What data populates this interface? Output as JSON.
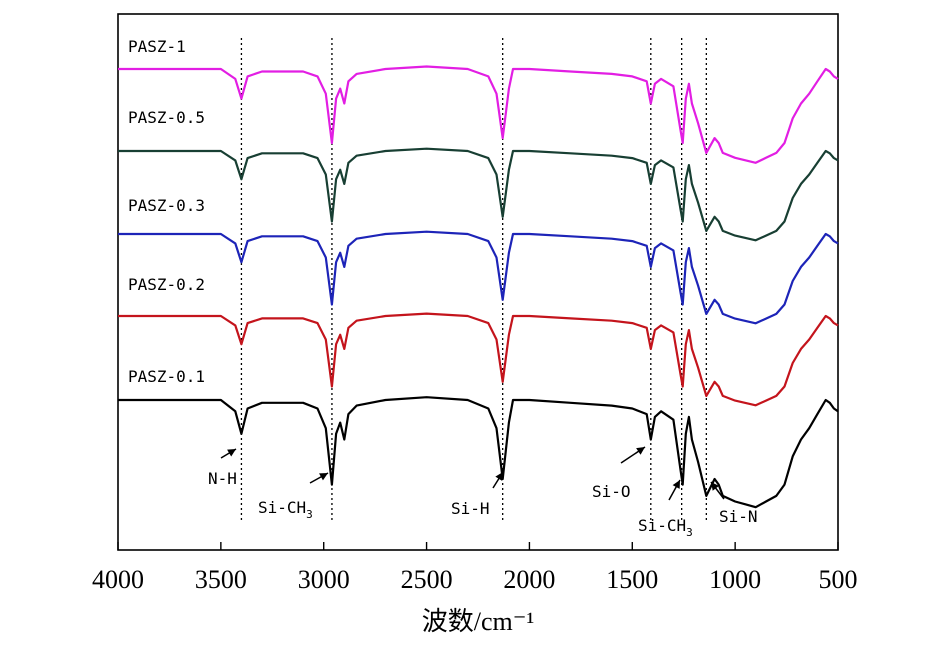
{
  "chart_data": {
    "type": "line",
    "title": "",
    "xlabel": "波数/cm⁻¹",
    "ylabel": "",
    "x_reversed": true,
    "xlim": [
      4000,
      500
    ],
    "xticks": [
      4000,
      3500,
      3000,
      2500,
      2000,
      1500,
      1000,
      500
    ],
    "y_axis_ticks": false,
    "grid": false,
    "legend": "none",
    "reference_lines": [
      3400,
      2960,
      2130,
      1410,
      1260,
      1140
    ],
    "series": [
      {
        "name": "PASZ-1",
        "color": "#e21ee3",
        "x": [
          4000,
          3500,
          3430,
          3400,
          3370,
          3300,
          3100,
          3030,
          2990,
          2960,
          2940,
          2920,
          2900,
          2880,
          2840,
          2700,
          2500,
          2300,
          2200,
          2160,
          2130,
          2100,
          2080,
          2000,
          1800,
          1600,
          1500,
          1430,
          1410,
          1390,
          1360,
          1300,
          1265,
          1255,
          1240,
          1225,
          1210,
          1180,
          1140,
          1100,
          1080,
          1060,
          1000,
          950,
          900,
          850,
          800,
          760,
          720,
          680,
          640,
          600,
          560,
          540,
          520,
          500
        ],
        "y": [
          100,
          100,
          96,
          88,
          97,
          99,
          99,
          97,
          90,
          70,
          88,
          92,
          86,
          95,
          98,
          100,
          101,
          100,
          97,
          90,
          72,
          92,
          100,
          100,
          99,
          98,
          97,
          95,
          86,
          94,
          96,
          93,
          75,
          70,
          88,
          94,
          86,
          78,
          66,
          72,
          70,
          66,
          64,
          63,
          62,
          64,
          66,
          70,
          80,
          86,
          90,
          95,
          100,
          99,
          97,
          96
        ]
      },
      {
        "name": "PASZ-0.5",
        "color": "#183f33",
        "x": [
          4000,
          3500,
          3430,
          3400,
          3370,
          3300,
          3100,
          3030,
          2990,
          2960,
          2940,
          2920,
          2900,
          2880,
          2840,
          2700,
          2500,
          2300,
          2200,
          2160,
          2130,
          2100,
          2080,
          2000,
          1800,
          1600,
          1500,
          1430,
          1410,
          1390,
          1360,
          1300,
          1265,
          1255,
          1240,
          1225,
          1210,
          1180,
          1140,
          1100,
          1080,
          1060,
          1000,
          950,
          900,
          850,
          800,
          760,
          720,
          680,
          640,
          600,
          560,
          540,
          520,
          500
        ],
        "y": [
          100,
          100,
          96,
          88,
          97,
          99,
          99,
          97,
          90,
          70,
          88,
          92,
          86,
          95,
          98,
          100,
          101,
          100,
          97,
          90,
          72,
          92,
          100,
          100,
          99,
          98,
          97,
          95,
          86,
          94,
          96,
          93,
          75,
          70,
          88,
          94,
          86,
          78,
          66,
          72,
          70,
          66,
          64,
          63,
          62,
          64,
          66,
          70,
          80,
          86,
          90,
          95,
          100,
          99,
          97,
          96
        ]
      },
      {
        "name": "PASZ-0.3",
        "color": "#1d24b8",
        "x": [
          4000,
          3500,
          3430,
          3400,
          3370,
          3300,
          3100,
          3030,
          2990,
          2960,
          2940,
          2920,
          2900,
          2880,
          2840,
          2700,
          2500,
          2300,
          2200,
          2160,
          2130,
          2100,
          2080,
          2000,
          1800,
          1600,
          1500,
          1430,
          1410,
          1390,
          1360,
          1300,
          1265,
          1255,
          1240,
          1225,
          1210,
          1180,
          1140,
          1100,
          1080,
          1060,
          1000,
          950,
          900,
          850,
          800,
          760,
          720,
          680,
          640,
          600,
          560,
          540,
          520,
          500
        ],
        "y": [
          100,
          100,
          96,
          88,
          97,
          99,
          99,
          97,
          90,
          70,
          88,
          92,
          86,
          95,
          98,
          100,
          101,
          100,
          97,
          90,
          72,
          92,
          100,
          100,
          99,
          98,
          97,
          95,
          86,
          94,
          96,
          93,
          75,
          70,
          88,
          94,
          86,
          78,
          66,
          72,
          70,
          66,
          64,
          63,
          62,
          64,
          66,
          70,
          80,
          86,
          90,
          95,
          100,
          99,
          97,
          96
        ]
      },
      {
        "name": "PASZ-0.2",
        "color": "#c4141c",
        "x": [
          4000,
          3500,
          3430,
          3400,
          3370,
          3300,
          3100,
          3030,
          2990,
          2960,
          2940,
          2920,
          2900,
          2880,
          2840,
          2700,
          2500,
          2300,
          2200,
          2160,
          2130,
          2100,
          2080,
          2000,
          1800,
          1600,
          1500,
          1430,
          1410,
          1390,
          1360,
          1300,
          1265,
          1255,
          1240,
          1225,
          1210,
          1180,
          1140,
          1100,
          1080,
          1060,
          1000,
          950,
          900,
          850,
          800,
          760,
          720,
          680,
          640,
          600,
          560,
          540,
          520,
          500
        ],
        "y": [
          100,
          100,
          96,
          88,
          97,
          99,
          99,
          97,
          90,
          70,
          88,
          92,
          86,
          95,
          98,
          100,
          101,
          100,
          97,
          90,
          72,
          92,
          100,
          100,
          99,
          98,
          97,
          95,
          86,
          94,
          96,
          93,
          75,
          70,
          88,
          94,
          86,
          78,
          66,
          72,
          70,
          66,
          64,
          63,
          62,
          64,
          66,
          70,
          80,
          86,
          90,
          95,
          100,
          99,
          97,
          96
        ]
      },
      {
        "name": "PASZ-0.1",
        "color": "#000000",
        "x": [
          4000,
          3500,
          3430,
          3400,
          3370,
          3300,
          3100,
          3030,
          2990,
          2960,
          2940,
          2920,
          2900,
          2880,
          2840,
          2700,
          2500,
          2300,
          2200,
          2160,
          2130,
          2100,
          2080,
          2000,
          1800,
          1600,
          1500,
          1430,
          1410,
          1390,
          1360,
          1300,
          1265,
          1255,
          1240,
          1225,
          1210,
          1180,
          1140,
          1100,
          1080,
          1060,
          1000,
          950,
          900,
          850,
          800,
          760,
          720,
          680,
          640,
          600,
          560,
          540,
          520,
          500
        ],
        "y": [
          100,
          100,
          96,
          88,
          97,
          99,
          99,
          97,
          90,
          70,
          88,
          92,
          86,
          95,
          98,
          100,
          101,
          100,
          97,
          90,
          72,
          92,
          100,
          100,
          99,
          98,
          97,
          95,
          86,
          94,
          96,
          93,
          75,
          70,
          88,
          94,
          86,
          78,
          66,
          72,
          70,
          66,
          64,
          63,
          62,
          64,
          66,
          70,
          80,
          86,
          90,
          95,
          100,
          99,
          97,
          96
        ]
      }
    ],
    "annotations": [
      {
        "text": "N-H",
        "sub": "",
        "x": 3400
      },
      {
        "text": "Si-CH",
        "sub": "3",
        "x": 2960
      },
      {
        "text": "Si-H",
        "sub": "",
        "x": 2130
      },
      {
        "text": "Si-O",
        "sub": "",
        "x": 1410
      },
      {
        "text": "Si-CH",
        "sub": "3",
        "x": 1260
      },
      {
        "text": "Si-N",
        "sub": "",
        "x": 1140
      }
    ]
  }
}
